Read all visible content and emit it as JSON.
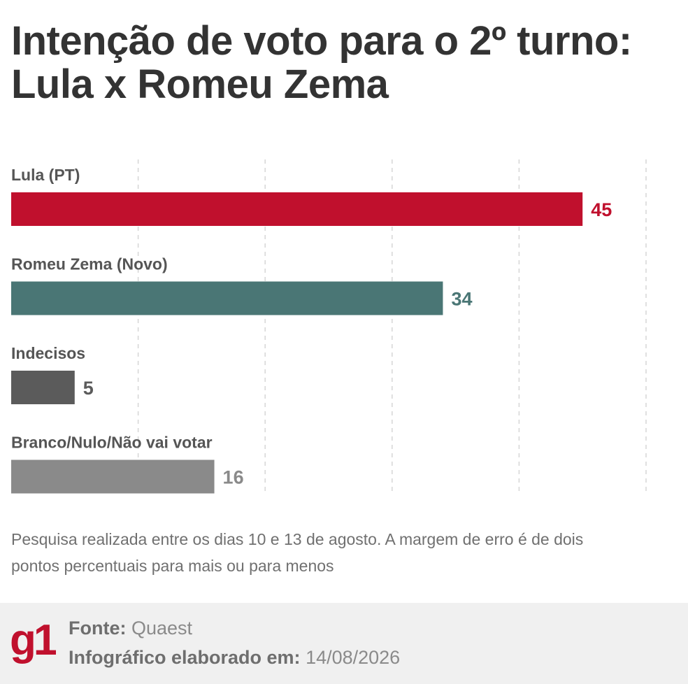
{
  "title": "Intenção de voto para o 2º turno: Lula x Romeu Zema",
  "chart_data": {
    "type": "bar",
    "orientation": "horizontal",
    "categories": [
      "Lula (PT)",
      "Romeu Zema (Novo)",
      "Indecisos",
      "Branco/Nulo/Não vai votar"
    ],
    "values": [
      45,
      34,
      5,
      16
    ],
    "colors": [
      "#c0102d",
      "#4a7675",
      "#5b5b5b",
      "#8a8a8a"
    ],
    "xlim": [
      0,
      50
    ],
    "grid": true
  },
  "note": "Pesquisa realizada entre os dias 10 e 13 de agosto. A margem de erro é de dois pontos percentuais para mais ou para menos",
  "footer": {
    "logo": "g1",
    "source_label": "Fonte:",
    "source_value": "Quaest",
    "date_label": "Infográfico elaborado em:",
    "date_value": "14/08/2026"
  },
  "colors": {
    "brand": "#c0102d",
    "footer_bg": "#f0f0f0"
  }
}
